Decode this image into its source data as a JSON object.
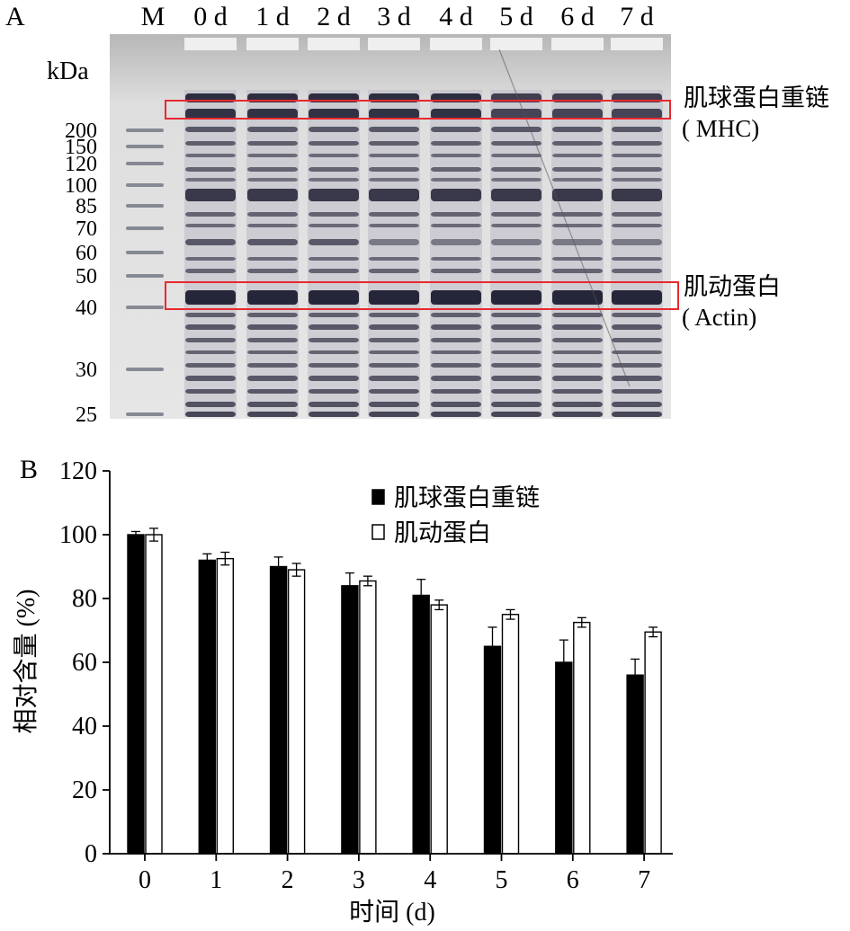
{
  "panel_a": {
    "label": "A",
    "marker_label": "M",
    "kda_label": "kDa",
    "lanes": [
      "0 d",
      "1 d",
      "2 d",
      "3 d",
      "4 d",
      "5 d",
      "6 d",
      "7 d"
    ],
    "mw_markers": [
      "200",
      "150",
      "120",
      "100",
      "85",
      "70",
      "60",
      "50",
      "40",
      "30",
      "25"
    ],
    "annotations": {
      "mhc_cn": "肌球蛋白重链",
      "mhc_en": "( MHC)",
      "actin_cn": "肌动蛋白",
      "actin_en": "( Actin)"
    },
    "box_color": "#e8292f"
  },
  "chart_data": {
    "panel_label": "B",
    "type": "bar",
    "categories": [
      "0",
      "1",
      "2",
      "3",
      "4",
      "5",
      "6",
      "7"
    ],
    "series": [
      {
        "name": "肌球蛋白重链",
        "values": [
          100,
          92,
          90,
          84,
          81,
          65,
          60,
          56
        ],
        "errors": [
          1,
          2,
          3,
          4,
          5,
          6,
          7,
          5
        ],
        "fill": "#000000"
      },
      {
        "name": "肌动蛋白",
        "values": [
          100,
          92.5,
          89,
          85.5,
          78,
          75,
          72.5,
          69.5
        ],
        "errors": [
          2,
          2,
          2,
          1.5,
          1.5,
          1.5,
          1.5,
          1.5
        ],
        "fill": "#ffffff"
      }
    ],
    "xlabel": "时间 (d)",
    "ylabel": "相对含量 (%)",
    "ylim": [
      0,
      120
    ],
    "yticks": [
      "0",
      "20",
      "40",
      "60",
      "80",
      "100",
      "120"
    ],
    "legend_placement": "top-center"
  }
}
